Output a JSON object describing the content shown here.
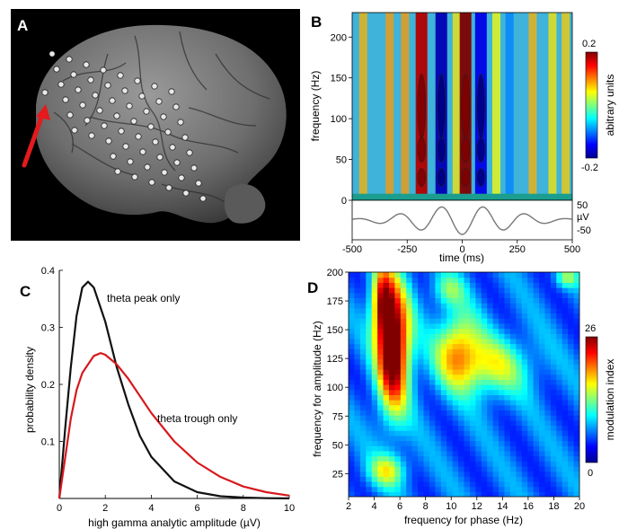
{
  "panels": {
    "A": {
      "label": "A"
    },
    "B": {
      "label": "B"
    },
    "C": {
      "label": "C"
    },
    "D": {
      "label": "D"
    }
  },
  "chart_data": [
    {
      "id": "B",
      "type": "heatmap",
      "xlabel": "time (ms)",
      "ylabel": "frequency (Hz)",
      "xticks": [
        -500,
        -250,
        0,
        250,
        500
      ],
      "yticks": [
        0,
        50,
        100,
        150,
        200
      ],
      "xlim": [
        -500,
        500
      ],
      "ylim": [
        0,
        230
      ],
      "colorbar": {
        "label": "abitrary units",
        "max": "0.2",
        "min": "-0.2"
      },
      "trace": {
        "unit": "µV",
        "top": "50",
        "bottom": "-50"
      },
      "stripes": [
        {
          "t": -450,
          "v": 0.08
        },
        {
          "t": -330,
          "v": 0.09
        },
        {
          "t": -260,
          "v": 0.09
        },
        {
          "t": -185,
          "v": 0.18
        },
        {
          "t": -95,
          "v": -0.18
        },
        {
          "t": -25,
          "v": 0.06
        },
        {
          "t": 15,
          "v": 0.2
        },
        {
          "t": 85,
          "v": -0.16
        },
        {
          "t": 155,
          "v": 0.05
        },
        {
          "t": 215,
          "v": -0.1
        },
        {
          "t": 320,
          "v": 0.08
        },
        {
          "t": 410,
          "v": 0.06
        },
        {
          "t": 470,
          "v": 0.07
        }
      ]
    },
    {
      "id": "C",
      "type": "line",
      "xlabel": "high gamma analytic amplitude (µV)",
      "ylabel": "probability density",
      "xticks": [
        0,
        2,
        4,
        6,
        8,
        10
      ],
      "yticks": [
        0.1,
        0.2,
        0.3,
        0.4
      ],
      "xlim": [
        0,
        10
      ],
      "ylim": [
        0,
        0.4
      ],
      "series": [
        {
          "name": "theta peak only",
          "color": "#111111",
          "x": [
            0,
            0.25,
            0.5,
            0.75,
            1.0,
            1.25,
            1.5,
            2.0,
            2.5,
            3.0,
            3.5,
            4.0,
            5.0,
            6.0,
            7.0,
            8.0,
            9.0,
            10.0
          ],
          "y": [
            0,
            0.12,
            0.23,
            0.32,
            0.37,
            0.38,
            0.37,
            0.31,
            0.23,
            0.165,
            0.11,
            0.073,
            0.03,
            0.011,
            0.004,
            0.0015,
            0.0005,
            0.0002
          ]
        },
        {
          "name": "theta trough only",
          "color": "#d7191c",
          "x": [
            0,
            0.25,
            0.5,
            0.75,
            1.0,
            1.5,
            1.8,
            2.0,
            2.5,
            3.0,
            3.5,
            4.0,
            5.0,
            6.0,
            7.0,
            8.0,
            9.0,
            10.0
          ],
          "y": [
            0,
            0.07,
            0.14,
            0.19,
            0.22,
            0.25,
            0.255,
            0.252,
            0.235,
            0.21,
            0.18,
            0.15,
            0.1,
            0.063,
            0.038,
            0.021,
            0.011,
            0.005
          ]
        }
      ]
    },
    {
      "id": "D",
      "type": "heatmap",
      "xlabel": "frequency for phase (Hz)",
      "ylabel": "frequency for amplitude (Hz)",
      "xticks": [
        2,
        4,
        6,
        8,
        10,
        12,
        14,
        16,
        18,
        20
      ],
      "yticks": [
        25,
        50,
        75,
        100,
        125,
        150,
        175,
        200
      ],
      "xlim": [
        2,
        20
      ],
      "ylim": [
        5,
        200
      ],
      "colorbar": {
        "label": "modulation index",
        "max": "26",
        "min": "0"
      },
      "hotspots": [
        {
          "x": 5.5,
          "y": 135,
          "sx": 0.9,
          "sy": 38,
          "v": 24
        },
        {
          "x": 4.6,
          "y": 175,
          "sx": 0.6,
          "sy": 22,
          "v": 14
        },
        {
          "x": 10.5,
          "y": 135,
          "sx": 1.2,
          "sy": 22,
          "v": 11
        },
        {
          "x": 13,
          "y": 118,
          "sx": 2.2,
          "sy": 18,
          "v": 9
        },
        {
          "x": 5,
          "y": 28,
          "sx": 1.0,
          "sy": 10,
          "v": 9
        },
        {
          "x": 9.8,
          "y": 185,
          "sx": 0.9,
          "sy": 10,
          "v": 6
        },
        {
          "x": 19,
          "y": 195,
          "sx": 0.6,
          "sy": 6,
          "v": 7
        }
      ]
    }
  ]
}
